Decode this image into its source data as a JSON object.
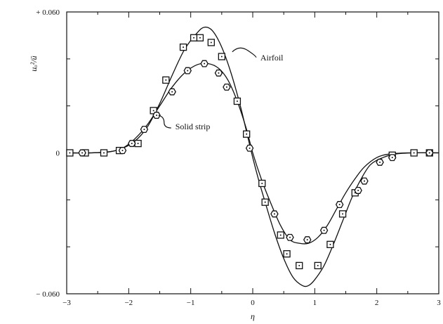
{
  "chart_data": {
    "type": "line",
    "title": "",
    "xlabel": "η",
    "ylabel": "uₒ²/ū",
    "xlim": [
      -3,
      3
    ],
    "ylim": [
      -0.06,
      0.06
    ],
    "x_ticks": [
      {
        "value": -3,
        "label": "−3"
      },
      {
        "value": -2,
        "label": "−2"
      },
      {
        "value": -1,
        "label": "−1"
      },
      {
        "value": 0,
        "label": "0"
      },
      {
        "value": 1,
        "label": "1"
      },
      {
        "value": 2,
        "label": "2"
      },
      {
        "value": 3,
        "label": "3"
      }
    ],
    "y_ticks": [
      {
        "value": 0.06,
        "label": "+ 0.060"
      },
      {
        "value": 0,
        "label": "0"
      },
      {
        "value": -0.06,
        "label": "− 0.060"
      }
    ],
    "grid": false,
    "annotations": [
      {
        "text": "Airfoil",
        "series": "airfoil",
        "at_x": -0.33,
        "at_y": 0.043
      },
      {
        "text": "Solid strip",
        "series": "strip",
        "at_x": -1.52,
        "at_y": 0.016
      }
    ],
    "series": [
      {
        "id": "airfoil",
        "marker": "square",
        "curve": [
          [
            -3.0,
            0.0
          ],
          [
            -2.6,
            0.0
          ],
          [
            -2.3,
            0.0005
          ],
          [
            -2.1,
            0.002
          ],
          [
            -1.9,
            0.005
          ],
          [
            -1.7,
            0.011
          ],
          [
            -1.5,
            0.021
          ],
          [
            -1.3,
            0.033
          ],
          [
            -1.1,
            0.044
          ],
          [
            -0.9,
            0.051
          ],
          [
            -0.78,
            0.0535
          ],
          [
            -0.65,
            0.052
          ],
          [
            -0.5,
            0.045
          ],
          [
            -0.35,
            0.034
          ],
          [
            -0.2,
            0.02
          ],
          [
            -0.1,
            0.009
          ],
          [
            0.0,
            -0.002
          ],
          [
            0.1,
            -0.012
          ],
          [
            0.2,
            -0.021
          ],
          [
            0.35,
            -0.034
          ],
          [
            0.5,
            -0.045
          ],
          [
            0.65,
            -0.053
          ],
          [
            0.8,
            -0.0565
          ],
          [
            0.9,
            -0.0565
          ],
          [
            1.0,
            -0.054
          ],
          [
            1.15,
            -0.048
          ],
          [
            1.3,
            -0.039
          ],
          [
            1.45,
            -0.029
          ],
          [
            1.6,
            -0.019
          ],
          [
            1.75,
            -0.011
          ],
          [
            1.9,
            -0.005
          ],
          [
            2.1,
            -0.002
          ],
          [
            2.3,
            -0.0005
          ],
          [
            2.6,
            0.0
          ],
          [
            3.0,
            0.0
          ]
        ],
        "points": [
          [
            -2.95,
            0.0
          ],
          [
            -2.7,
            0.0
          ],
          [
            -2.4,
            0.0
          ],
          [
            -2.15,
            0.001
          ],
          [
            -1.85,
            0.004
          ],
          [
            -1.6,
            0.018
          ],
          [
            -1.4,
            0.031
          ],
          [
            -1.12,
            0.045
          ],
          [
            -0.95,
            0.049
          ],
          [
            -0.85,
            0.049
          ],
          [
            -0.67,
            0.047
          ],
          [
            -0.5,
            0.041
          ],
          [
            -0.25,
            0.022
          ],
          [
            -0.1,
            0.008
          ],
          [
            0.15,
            -0.013
          ],
          [
            0.2,
            -0.021
          ],
          [
            0.45,
            -0.035
          ],
          [
            0.55,
            -0.043
          ],
          [
            0.75,
            -0.048
          ],
          [
            1.05,
            -0.048
          ],
          [
            1.25,
            -0.039
          ],
          [
            1.45,
            -0.026
          ],
          [
            1.65,
            -0.017
          ],
          [
            2.25,
            -0.001
          ],
          [
            2.6,
            0.0
          ],
          [
            2.85,
            0.0
          ]
        ]
      },
      {
        "id": "strip",
        "marker": "hexagon",
        "curve": [
          [
            -3.0,
            0.0
          ],
          [
            -2.6,
            0.0
          ],
          [
            -2.3,
            0.0005
          ],
          [
            -2.1,
            0.002
          ],
          [
            -1.9,
            0.006
          ],
          [
            -1.7,
            0.012
          ],
          [
            -1.5,
            0.02
          ],
          [
            -1.3,
            0.028
          ],
          [
            -1.1,
            0.034
          ],
          [
            -0.9,
            0.0375
          ],
          [
            -0.72,
            0.038
          ],
          [
            -0.55,
            0.036
          ],
          [
            -0.4,
            0.031
          ],
          [
            -0.25,
            0.022
          ],
          [
            -0.1,
            0.01
          ],
          [
            0.0,
            0.0
          ],
          [
            0.15,
            -0.012
          ],
          [
            0.3,
            -0.022
          ],
          [
            0.45,
            -0.031
          ],
          [
            0.6,
            -0.037
          ],
          [
            0.75,
            -0.0385
          ],
          [
            0.9,
            -0.0385
          ],
          [
            1.05,
            -0.036
          ],
          [
            1.2,
            -0.031
          ],
          [
            1.35,
            -0.024
          ],
          [
            1.5,
            -0.017
          ],
          [
            1.65,
            -0.011
          ],
          [
            1.8,
            -0.006
          ],
          [
            2.0,
            -0.002
          ],
          [
            2.2,
            -0.0005
          ],
          [
            2.5,
            0.0
          ],
          [
            3.0,
            0.0
          ]
        ],
        "points": [
          [
            -2.75,
            0.0
          ],
          [
            -2.1,
            0.001
          ],
          [
            -1.95,
            0.004
          ],
          [
            -1.75,
            0.01
          ],
          [
            -1.55,
            0.016
          ],
          [
            -1.3,
            0.026
          ],
          [
            -1.05,
            0.035
          ],
          [
            -0.78,
            0.038
          ],
          [
            -0.55,
            0.034
          ],
          [
            -0.42,
            0.028
          ],
          [
            -0.05,
            0.002
          ],
          [
            0.35,
            -0.026
          ],
          [
            0.6,
            -0.036
          ],
          [
            0.88,
            -0.037
          ],
          [
            1.15,
            -0.033
          ],
          [
            1.4,
            -0.022
          ],
          [
            1.7,
            -0.016
          ],
          [
            1.8,
            -0.012
          ],
          [
            2.05,
            -0.004
          ],
          [
            2.25,
            -0.002
          ],
          [
            2.85,
            0.0
          ]
        ]
      }
    ]
  }
}
